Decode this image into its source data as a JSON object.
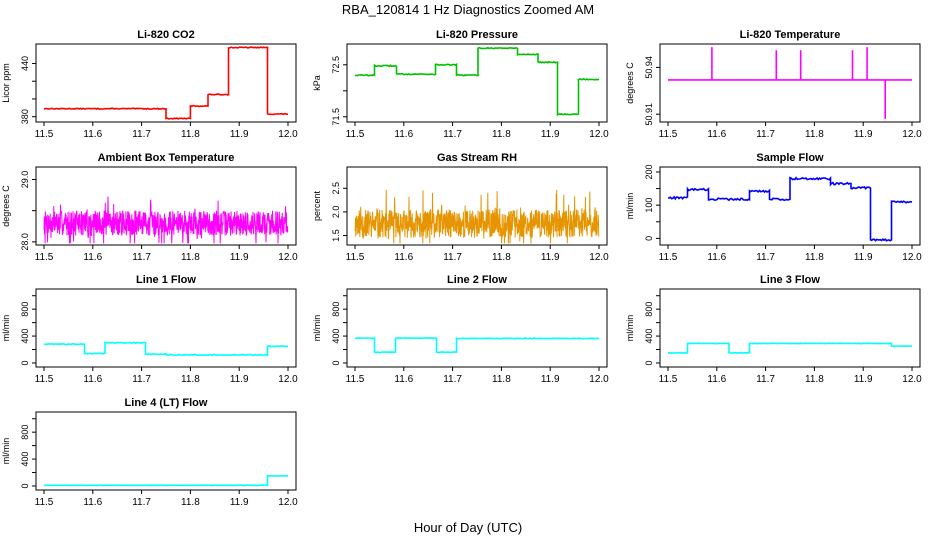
{
  "page": {
    "title": "RBA_120814  1 Hz Diagnostics Zoomed AM",
    "xlabel": "Hour of Day (UTC)"
  },
  "x_ticks": [
    "11.5",
    "11.6",
    "11.7",
    "11.8",
    "11.9",
    "12.0"
  ],
  "chart_data": [
    {
      "type": "line",
      "title": "Li-820 CO2",
      "ylabel": "Licor ppm",
      "color": "#ff0000",
      "xlim": [
        11.5,
        12.0
      ],
      "ylim": [
        374,
        462
      ],
      "yticks": [
        380,
        400,
        420,
        440
      ],
      "ytick_labels": [
        "380",
        "",
        "",
        "440"
      ],
      "noise": 0.5,
      "segments": [
        {
          "x0": 11.5,
          "x1": 11.75,
          "y": 389
        },
        {
          "x0": 11.75,
          "x1": 11.8,
          "y": 378
        },
        {
          "x0": 11.8,
          "x1": 11.836,
          "y": 392
        },
        {
          "x0": 11.836,
          "x1": 11.878,
          "y": 405
        },
        {
          "x0": 11.878,
          "x1": 11.958,
          "y": 458
        },
        {
          "x0": 11.958,
          "x1": 12.0,
          "y": 383
        }
      ]
    },
    {
      "type": "line",
      "title": "Li-820 Pressure",
      "ylabel": "kPa",
      "color": "#00c000",
      "xlim": [
        11.5,
        12.0
      ],
      "ylim": [
        71.4,
        72.9
      ],
      "yticks": [
        71.5,
        72.0,
        72.5
      ],
      "ytick_labels": [
        "71.5",
        "",
        "72.5"
      ],
      "noise": 0.01,
      "segments": [
        {
          "x0": 11.5,
          "x1": 11.54,
          "y": 72.3
        },
        {
          "x0": 11.54,
          "x1": 11.585,
          "y": 72.48
        },
        {
          "x0": 11.585,
          "x1": 11.665,
          "y": 72.32
        },
        {
          "x0": 11.665,
          "x1": 11.708,
          "y": 72.5
        },
        {
          "x0": 11.708,
          "x1": 11.752,
          "y": 72.3
        },
        {
          "x0": 11.752,
          "x1": 11.833,
          "y": 72.82
        },
        {
          "x0": 11.833,
          "x1": 11.875,
          "y": 72.7
        },
        {
          "x0": 11.875,
          "x1": 11.915,
          "y": 72.55
        },
        {
          "x0": 11.915,
          "x1": 11.958,
          "y": 71.55
        },
        {
          "x0": 11.958,
          "x1": 12.0,
          "y": 72.22
        }
      ]
    },
    {
      "type": "line",
      "title": "Li-820 Temperature",
      "ylabel": "degrees C",
      "color": "#ff00ff",
      "xlim": [
        11.5,
        12.0
      ],
      "ylim": [
        50.905,
        50.955
      ],
      "yticks": [
        50.91,
        50.94
      ],
      "ytick_labels": [
        "50.91",
        "50.94"
      ],
      "baseline": 50.932,
      "spikes": [
        {
          "x": 11.59,
          "y": 50.953
        },
        {
          "x": 11.722,
          "y": 50.951
        },
        {
          "x": 11.772,
          "y": 50.951
        },
        {
          "x": 11.878,
          "y": 50.951
        },
        {
          "x": 11.908,
          "y": 50.953
        },
        {
          "x": 11.945,
          "y": 50.907
        }
      ]
    },
    {
      "type": "line",
      "title": "Ambient Box Temperature",
      "ylabel": "degrees C",
      "color": "#ff00ff",
      "xlim": [
        11.5,
        12.0
      ],
      "ylim": [
        27.95,
        29.2
      ],
      "yticks": [
        28.0,
        28.5,
        29.0
      ],
      "ytick_labels": [
        "28.0",
        "",
        "29.0"
      ],
      "mean": 28.3,
      "spread": 0.2,
      "seed": 7
    },
    {
      "type": "line",
      "title": "Gas Stream RH",
      "ylabel": "percent",
      "color": "#e69500",
      "xlim": [
        11.5,
        12.0
      ],
      "ylim": [
        1.3,
        2.95
      ],
      "yticks": [
        1.5,
        2.0,
        2.5
      ],
      "ytick_labels": [
        "1.5",
        "2.0",
        "2.5"
      ],
      "mean": 1.75,
      "spread": 0.3,
      "seed": 11
    },
    {
      "type": "line",
      "title": "Sample Flow",
      "ylabel": "ml/min",
      "color": "#0000ff",
      "xlim": [
        11.5,
        12.0
      ],
      "ylim": [
        -20,
        215
      ],
      "yticks": [
        0,
        50,
        100,
        150,
        200
      ],
      "ytick_labels": [
        "0",
        "",
        "100",
        "",
        "200"
      ],
      "noise": 3,
      "segments": [
        {
          "x0": 11.5,
          "x1": 11.54,
          "y": 122
        },
        {
          "x0": 11.54,
          "x1": 11.583,
          "y": 147
        },
        {
          "x0": 11.583,
          "x1": 11.667,
          "y": 118
        },
        {
          "x0": 11.667,
          "x1": 11.708,
          "y": 142
        },
        {
          "x0": 11.708,
          "x1": 11.75,
          "y": 118
        },
        {
          "x0": 11.75,
          "x1": 11.833,
          "y": 180
        },
        {
          "x0": 11.833,
          "x1": 11.875,
          "y": 165
        },
        {
          "x0": 11.875,
          "x1": 11.915,
          "y": 152
        },
        {
          "x0": 11.915,
          "x1": 11.958,
          "y": -5
        },
        {
          "x0": 11.958,
          "x1": 12.0,
          "y": 110
        }
      ]
    },
    {
      "type": "line",
      "title": "Line 1 Flow",
      "ylabel": "ml/min",
      "color": "#00ffff",
      "xlim": [
        11.5,
        12.0
      ],
      "ylim": [
        -60,
        1100
      ],
      "yticks": [
        0,
        200,
        400,
        600,
        800,
        1000
      ],
      "ytick_labels": [
        "0",
        "",
        "400",
        "",
        "800",
        ""
      ],
      "noise": 6,
      "segments": [
        {
          "x0": 11.5,
          "x1": 11.583,
          "y": 280
        },
        {
          "x0": 11.583,
          "x1": 11.625,
          "y": 140
        },
        {
          "x0": 11.625,
          "x1": 11.708,
          "y": 300
        },
        {
          "x0": 11.708,
          "x1": 11.75,
          "y": 130
        },
        {
          "x0": 11.75,
          "x1": 11.958,
          "y": 120
        },
        {
          "x0": 11.958,
          "x1": 12.0,
          "y": 250
        }
      ]
    },
    {
      "type": "line",
      "title": "Line 2 Flow",
      "ylabel": "ml/min",
      "color": "#00ffff",
      "xlim": [
        11.5,
        12.0
      ],
      "ylim": [
        -60,
        1100
      ],
      "yticks": [
        0,
        200,
        400,
        600,
        800,
        1000
      ],
      "ytick_labels": [
        "0",
        "",
        "400",
        "",
        "800",
        ""
      ],
      "noise": 4,
      "segments": [
        {
          "x0": 11.5,
          "x1": 11.54,
          "y": 370
        },
        {
          "x0": 11.54,
          "x1": 11.583,
          "y": 160
        },
        {
          "x0": 11.583,
          "x1": 11.667,
          "y": 370
        },
        {
          "x0": 11.667,
          "x1": 11.708,
          "y": 160
        },
        {
          "x0": 11.708,
          "x1": 12.0,
          "y": 365
        }
      ]
    },
    {
      "type": "line",
      "title": "Line 3 Flow",
      "ylabel": "ml/min",
      "color": "#00ffff",
      "xlim": [
        11.5,
        12.0
      ],
      "ylim": [
        -60,
        1100
      ],
      "yticks": [
        0,
        200,
        400,
        600,
        800,
        1000
      ],
      "ytick_labels": [
        "0",
        "",
        "400",
        "",
        "800",
        ""
      ],
      "noise": 3,
      "segments": [
        {
          "x0": 11.5,
          "x1": 11.54,
          "y": 150
        },
        {
          "x0": 11.54,
          "x1": 11.625,
          "y": 290
        },
        {
          "x0": 11.625,
          "x1": 11.667,
          "y": 150
        },
        {
          "x0": 11.667,
          "x1": 11.958,
          "y": 290
        },
        {
          "x0": 11.958,
          "x1": 12.0,
          "y": 250
        }
      ]
    },
    {
      "type": "line",
      "title": "Line 4 (LT) Flow",
      "ylabel": "ml/min",
      "color": "#00ffff",
      "xlim": [
        11.5,
        12.0
      ],
      "ylim": [
        -60,
        1100
      ],
      "yticks": [
        0,
        200,
        400,
        600,
        800,
        1000
      ],
      "ytick_labels": [
        "0",
        "",
        "400",
        "",
        "800",
        ""
      ],
      "noise": 2,
      "segments": [
        {
          "x0": 11.5,
          "x1": 11.958,
          "y": 10
        },
        {
          "x0": 11.958,
          "x1": 12.0,
          "y": 150
        }
      ]
    }
  ]
}
